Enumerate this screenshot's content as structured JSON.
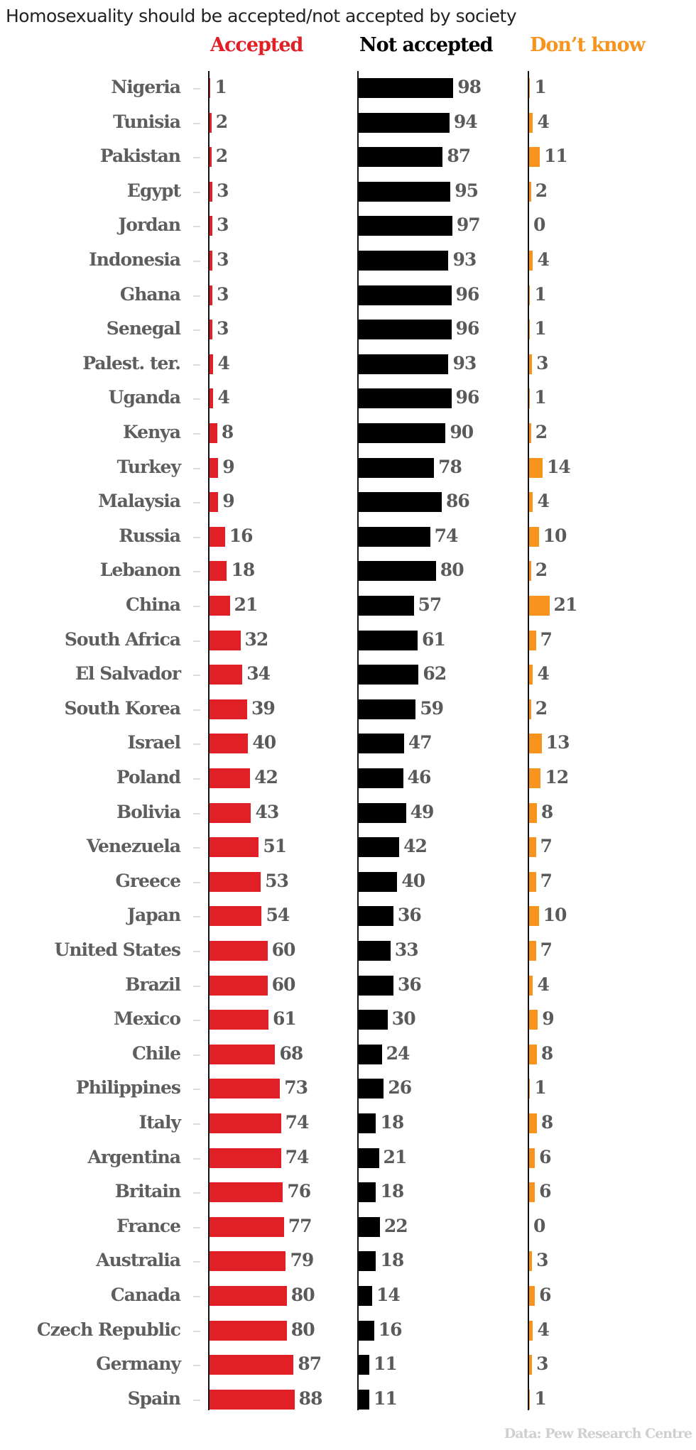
{
  "chart_data": {
    "type": "bar",
    "title": "Homosexuality should be accepted/not accepted by society",
    "source": "Data: Pew Research Centre",
    "xlim": [
      0,
      100
    ],
    "grid": false,
    "categories": [
      "Nigeria",
      "Tunisia",
      "Pakistan",
      "Egypt",
      "Jordan",
      "Indonesia",
      "Ghana",
      "Senegal",
      "Palest. ter.",
      "Uganda",
      "Kenya",
      "Turkey",
      "Malaysia",
      "Russia",
      "Lebanon",
      "China",
      "South Africa",
      "El Salvador",
      "South Korea",
      "Israel",
      "Poland",
      "Bolivia",
      "Venezuela",
      "Greece",
      "Japan",
      "United States",
      "Brazil",
      "Mexico",
      "Chile",
      "Philippines",
      "Italy",
      "Argentina",
      "Britain",
      "France",
      "Australia",
      "Canada",
      "Czech Republic",
      "Germany",
      "Spain"
    ],
    "series": [
      {
        "name": "Accepted",
        "color": "#e01f26",
        "values": [
          1,
          2,
          2,
          3,
          3,
          3,
          3,
          3,
          4,
          4,
          8,
          9,
          9,
          16,
          18,
          21,
          32,
          34,
          39,
          40,
          42,
          43,
          51,
          53,
          54,
          60,
          60,
          61,
          68,
          73,
          74,
          74,
          76,
          77,
          79,
          80,
          80,
          87,
          88
        ]
      },
      {
        "name": "Not accepted",
        "color": "#000000",
        "values": [
          98,
          94,
          87,
          95,
          97,
          93,
          96,
          96,
          93,
          96,
          90,
          78,
          86,
          74,
          80,
          57,
          61,
          62,
          59,
          47,
          46,
          49,
          42,
          40,
          36,
          33,
          36,
          30,
          24,
          26,
          18,
          21,
          18,
          22,
          18,
          14,
          16,
          11,
          11
        ]
      },
      {
        "name": "Don’t know",
        "color": "#f7941d",
        "values": [
          1,
          4,
          11,
          2,
          0,
          4,
          1,
          1,
          3,
          1,
          2,
          14,
          4,
          10,
          2,
          21,
          7,
          4,
          2,
          13,
          12,
          8,
          7,
          7,
          10,
          7,
          4,
          9,
          8,
          1,
          8,
          6,
          6,
          0,
          3,
          6,
          4,
          3,
          1
        ]
      }
    ]
  }
}
